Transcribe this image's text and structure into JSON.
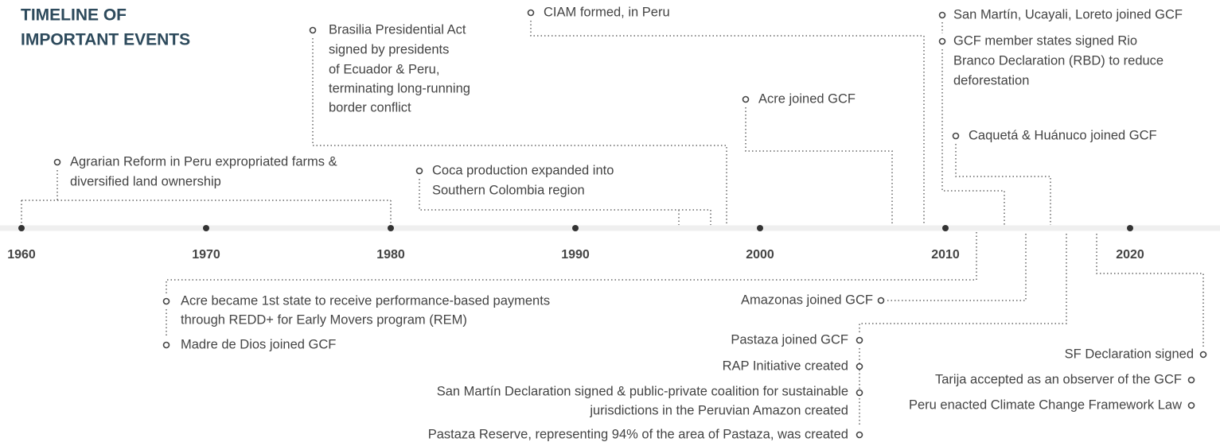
{
  "title": [
    "TIMELINE OF",
    "IMPORTANT EVENTS"
  ],
  "decades": [
    "1960",
    "1970",
    "1980",
    "1990",
    "2000",
    "2010",
    "2020"
  ],
  "events_above": [
    {
      "lines": [
        "Agrarian Reform in Peru expropriated farms &",
        "diversified land ownership"
      ]
    },
    {
      "lines": [
        "Coca production expanded into",
        "Southern Colombia region"
      ]
    },
    {
      "lines": [
        "Brasilia Presidential Act",
        "signed by presidents",
        "of Ecuador & Peru,",
        "terminating long-running",
        "border conflict"
      ]
    },
    {
      "lines": [
        "CIAM formed, in Peru"
      ]
    },
    {
      "lines": [
        "Acre joined GCF"
      ]
    },
    {
      "lines": [
        "San Martín, Ucayali, Loreto joined GCF"
      ]
    },
    {
      "lines": [
        "GCF member states signed Rio",
        "Branco Declaration (RBD) to reduce",
        "deforestation"
      ]
    },
    {
      "lines": [
        "Caquetá & Huánuco joined GCF"
      ]
    }
  ],
  "events_below": [
    {
      "lines": [
        "Acre became 1st state to receive performance-based payments",
        "through REDD+ for Early Movers program (REM)"
      ]
    },
    {
      "lines": [
        "Madre de Dios joined GCF"
      ]
    },
    {
      "lines": [
        "Amazonas joined GCF"
      ]
    },
    {
      "lines": [
        "Pastaza joined GCF"
      ]
    },
    {
      "lines": [
        "RAP Initiative created"
      ]
    },
    {
      "lines": [
        "San Martín Declaration signed & public-private coalition for sustainable",
        "jurisdictions in the Peruvian Amazon created"
      ]
    },
    {
      "lines": [
        "Pastaza Reserve, representing 94% of the area of Pastaza, was created"
      ]
    },
    {
      "lines": [
        "SF Declaration signed"
      ]
    },
    {
      "lines": [
        "Tarija accepted as an observer of the GCF"
      ]
    },
    {
      "lines": [
        "Peru enacted Climate Change Framework Law"
      ]
    }
  ]
}
